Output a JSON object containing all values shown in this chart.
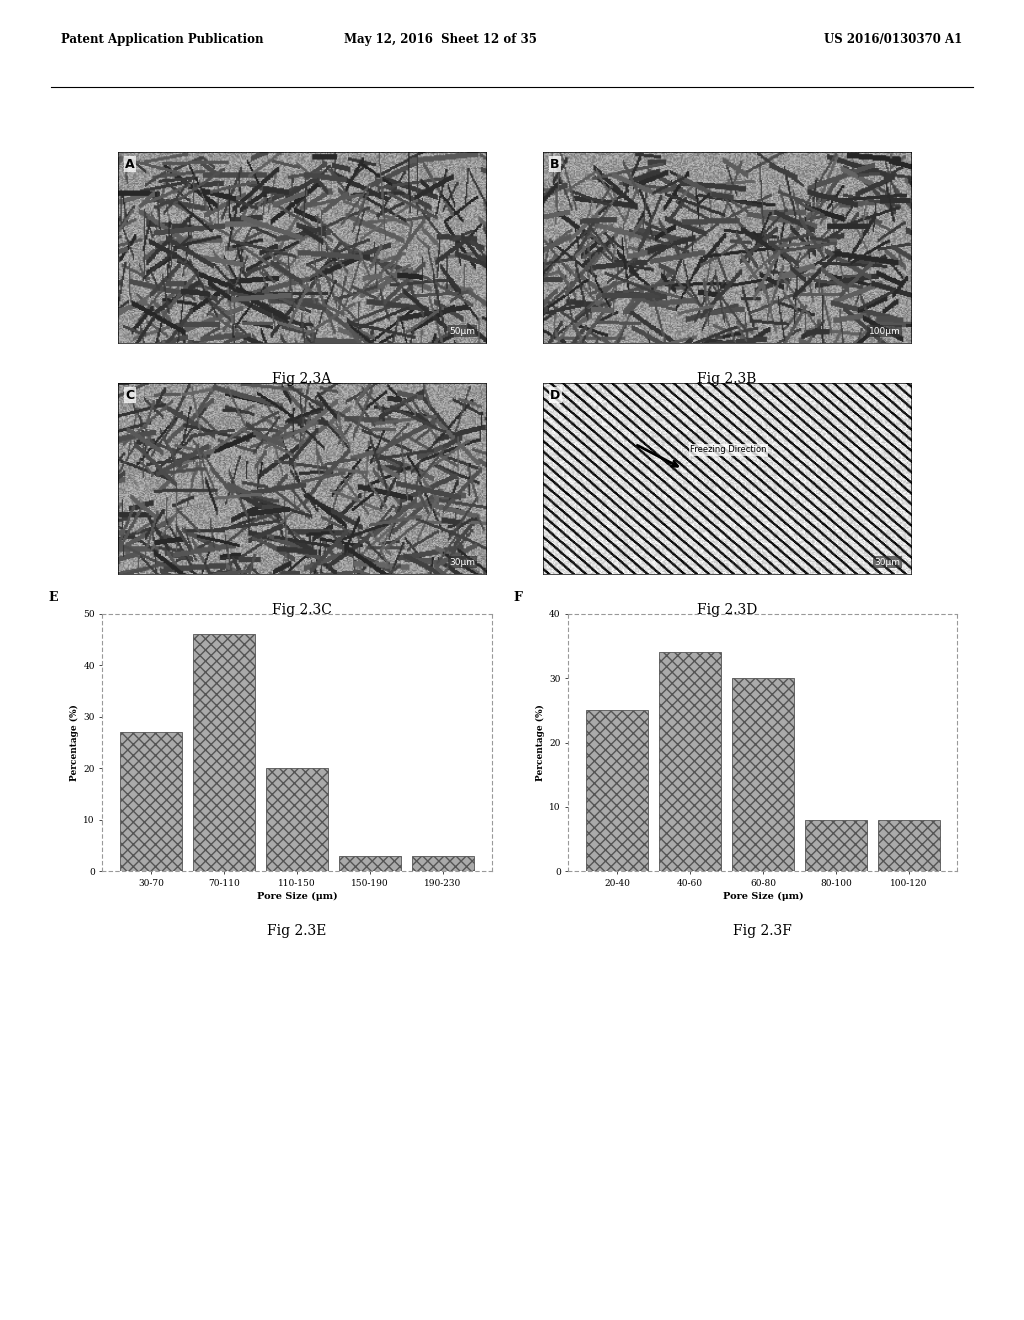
{
  "header_left": "Patent Application Publication",
  "header_mid": "May 12, 2016  Sheet 12 of 35",
  "header_right": "US 2016/0130370 A1",
  "chart_E": {
    "label": "E",
    "categories": [
      "30-70",
      "70-110",
      "110-150",
      "150-190",
      "190-230"
    ],
    "values": [
      27,
      46,
      20,
      3,
      3
    ],
    "ylabel": "Percentage (%)",
    "xlabel": "Pore Size (μm)",
    "ylim": [
      0,
      50
    ],
    "yticks": [
      0,
      10,
      20,
      30,
      40,
      50
    ],
    "caption": "Fig 2.3E"
  },
  "chart_F": {
    "label": "F",
    "categories": [
      "20-40",
      "40-60",
      "60-80",
      "80-100",
      "100-120"
    ],
    "values": [
      25,
      34,
      30,
      8,
      8
    ],
    "ylabel": "Percentage (%)",
    "xlabel": "Pore Size (μm)",
    "ylim": [
      0,
      40
    ],
    "yticks": [
      0,
      10,
      20,
      30,
      40
    ],
    "caption": "Fig 2.3F"
  },
  "fig_captions": {
    "A": "Fig 2.3A",
    "B": "Fig 2.3B",
    "C": "Fig 2.3C",
    "D": "Fig 2.3D"
  },
  "scale_bars": {
    "A": "50μm",
    "B": "100μm",
    "C": "30μm",
    "D": "30μm"
  },
  "bar_color": "#aaaaaa",
  "bar_hatch": "xxx",
  "bg_color": "#ffffff"
}
